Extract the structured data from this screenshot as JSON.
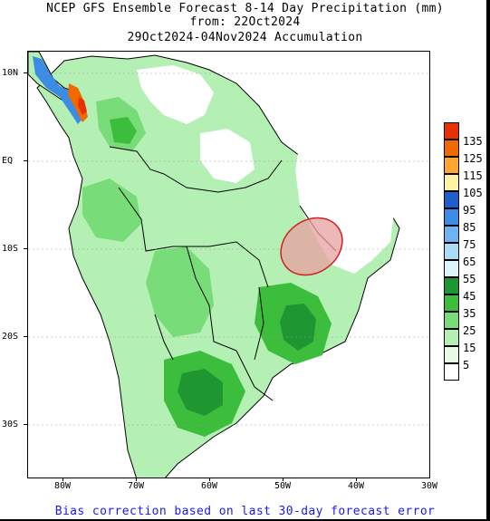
{
  "header": {
    "line1": "NCEP GFS Ensemble Forecast 8-14 Day Precipitation (mm)",
    "line2": "from: 22Oct2024",
    "line3": "29Oct2024-04Nov2024 Accumulation"
  },
  "map": {
    "lat_labels": [
      "10N",
      "EQ",
      "10S",
      "20S",
      "30S"
    ],
    "lon_labels": [
      "80W",
      "70W",
      "60W",
      "50W",
      "40W",
      "30W"
    ],
    "highlight_color": "#e8a0a0"
  },
  "legend": {
    "items": [
      {
        "label": "135",
        "color": "#e83000"
      },
      {
        "label": "125",
        "color": "#f06a00"
      },
      {
        "label": "115",
        "color": "#ffa530"
      },
      {
        "label": "105",
        "color": "#fff2a0"
      },
      {
        "label": "95",
        "color": "#1e5fcc"
      },
      {
        "label": "85",
        "color": "#3c8ce6"
      },
      {
        "label": "75",
        "color": "#6eb4f0"
      },
      {
        "label": "65",
        "color": "#aadcf8"
      },
      {
        "label": "55",
        "color": "#dcf5fc"
      },
      {
        "label": "45",
        "color": "#1e9632"
      },
      {
        "label": "35",
        "color": "#3cbe3c"
      },
      {
        "label": "25",
        "color": "#78dc78"
      },
      {
        "label": "15",
        "color": "#b4f0b4"
      },
      {
        "label": "5",
        "color": "#e6fae6"
      },
      {
        "label": "",
        "color": "#ffffff"
      }
    ]
  },
  "footer": {
    "text": "Bias correction based on last 30-day forecast error"
  }
}
